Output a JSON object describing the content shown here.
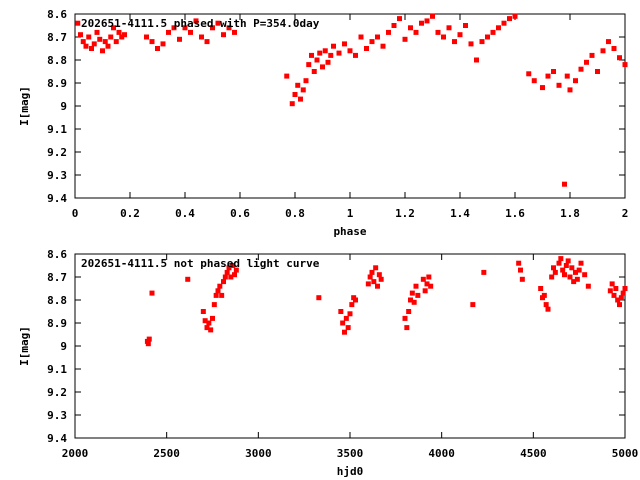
{
  "colors": {
    "points": "#ff0000",
    "axes": "#000000",
    "background": "#ffffff"
  },
  "chart_data": [
    {
      "type": "scatter",
      "title": "202651-4111.5 phased with P=354.0day",
      "xlabel": "phase",
      "ylabel": "I[mag]",
      "xlim": [
        0,
        2
      ],
      "ylim": [
        9.4,
        8.6
      ],
      "y_inverted": true,
      "xticks": [
        "0",
        "0.2",
        "0.4",
        "0.6",
        "0.8",
        "1",
        "1.2",
        "1.4",
        "1.6",
        "1.8",
        "2"
      ],
      "yticks": [
        "8.6",
        "8.7",
        "8.8",
        "8.9",
        "9",
        "9.1",
        "9.2",
        "9.3",
        "9.4"
      ],
      "series": [
        {
          "x": [
            0.01,
            0.02,
            0.03,
            0.04,
            0.05,
            0.06,
            0.07,
            0.08,
            0.09,
            0.1,
            0.11,
            0.12,
            0.13,
            0.14,
            0.15,
            0.16,
            0.17,
            0.18,
            0.26,
            0.28,
            0.3,
            0.32,
            0.34,
            0.36,
            0.38,
            0.4,
            0.42,
            0.44,
            0.46,
            0.48,
            0.5,
            0.52,
            0.54,
            0.56,
            0.58,
            0.77,
            0.79,
            0.8,
            0.81,
            0.82,
            0.83,
            0.84,
            0.85,
            0.86,
            0.87,
            0.88,
            0.89,
            0.9,
            0.91,
            0.92,
            0.93,
            0.94,
            0.96,
            0.98,
            1.0,
            1.02,
            1.04,
            1.06,
            1.08,
            1.1,
            1.12,
            1.14,
            1.16,
            1.18,
            1.2,
            1.22,
            1.24,
            1.26,
            1.28,
            1.3,
            1.32,
            1.34,
            1.36,
            1.38,
            1.4,
            1.42,
            1.44,
            1.46,
            1.48,
            1.5,
            1.52,
            1.54,
            1.56,
            1.58,
            1.6,
            1.65,
            1.67,
            1.7,
            1.72,
            1.74,
            1.76,
            1.78,
            1.79,
            1.8,
            1.82,
            1.84,
            1.86,
            1.88,
            1.9,
            1.92,
            1.94,
            1.96,
            1.98,
            2.0
          ],
          "y": [
            8.64,
            8.69,
            8.72,
            8.74,
            8.7,
            8.75,
            8.73,
            8.68,
            8.71,
            8.76,
            8.72,
            8.74,
            8.7,
            8.66,
            8.72,
            8.68,
            8.7,
            8.69,
            8.7,
            8.72,
            8.75,
            8.73,
            8.68,
            8.66,
            8.71,
            8.66,
            8.68,
            8.63,
            8.7,
            8.72,
            8.66,
            8.64,
            8.69,
            8.66,
            8.68,
            8.87,
            8.99,
            8.95,
            8.91,
            8.97,
            8.93,
            8.89,
            8.82,
            8.78,
            8.85,
            8.8,
            8.77,
            8.83,
            8.76,
            8.81,
            8.78,
            8.74,
            8.77,
            8.73,
            8.76,
            8.78,
            8.7,
            8.75,
            8.72,
            8.7,
            8.74,
            8.68,
            8.65,
            8.62,
            8.71,
            8.66,
            8.68,
            8.64,
            8.63,
            8.61,
            8.68,
            8.7,
            8.66,
            8.72,
            8.69,
            8.65,
            8.73,
            8.8,
            8.72,
            8.7,
            8.68,
            8.66,
            8.64,
            8.62,
            8.61,
            8.86,
            8.89,
            8.92,
            8.87,
            8.85,
            8.91,
            9.34,
            8.87,
            8.93,
            8.89,
            8.84,
            8.81,
            8.78,
            8.85,
            8.76,
            8.72,
            8.75,
            8.79,
            8.82
          ]
        }
      ]
    },
    {
      "type": "scatter",
      "title": "202651-4111.5 not phased light curve",
      "xlabel": "hjd0",
      "ylabel": "I[mag]",
      "xlim": [
        2000,
        5000
      ],
      "ylim": [
        9.4,
        8.6
      ],
      "y_inverted": true,
      "xticks": [
        "2000",
        "2500",
        "3000",
        "3500",
        "4000",
        "4500",
        "5000"
      ],
      "yticks": [
        "8.6",
        "8.7",
        "8.8",
        "8.9",
        "9",
        "9.1",
        "9.2",
        "9.3",
        "9.4"
      ],
      "series": [
        {
          "x": [
            2395,
            2400,
            2405,
            2420,
            2615,
            2700,
            2710,
            2720,
            2730,
            2740,
            2750,
            2760,
            2770,
            2780,
            2790,
            2800,
            2810,
            2820,
            2830,
            2840,
            2850,
            2860,
            2870,
            2880,
            3330,
            3450,
            3460,
            3470,
            3480,
            3490,
            3500,
            3510,
            3520,
            3530,
            3600,
            3610,
            3620,
            3630,
            3640,
            3650,
            3660,
            3670,
            3800,
            3810,
            3820,
            3830,
            3840,
            3850,
            3860,
            3870,
            3900,
            3910,
            3920,
            3930,
            3940,
            4170,
            4230,
            4420,
            4430,
            4440,
            4540,
            4550,
            4560,
            4570,
            4580,
            4600,
            4610,
            4620,
            4640,
            4650,
            4660,
            4670,
            4680,
            4690,
            4700,
            4710,
            4720,
            4730,
            4740,
            4750,
            4760,
            4780,
            4800,
            4920,
            4930,
            4940,
            4950,
            4960,
            4970,
            4980,
            4990,
            5000
          ],
          "y": [
            8.98,
            8.99,
            8.97,
            8.77,
            8.71,
            8.85,
            8.89,
            8.92,
            8.9,
            8.93,
            8.88,
            8.82,
            8.78,
            8.76,
            8.74,
            8.78,
            8.72,
            8.7,
            8.68,
            8.66,
            8.7,
            8.65,
            8.69,
            8.67,
            8.79,
            8.85,
            8.9,
            8.94,
            8.88,
            8.92,
            8.86,
            8.82,
            8.79,
            8.8,
            8.73,
            8.7,
            8.68,
            8.72,
            8.66,
            8.74,
            8.69,
            8.71,
            8.88,
            8.92,
            8.85,
            8.8,
            8.77,
            8.81,
            8.74,
            8.78,
            8.71,
            8.76,
            8.73,
            8.7,
            8.74,
            8.82,
            8.68,
            8.64,
            8.67,
            8.71,
            8.75,
            8.79,
            8.78,
            8.82,
            8.84,
            8.7,
            8.66,
            8.68,
            8.64,
            8.62,
            8.67,
            8.69,
            8.65,
            8.63,
            8.7,
            8.66,
            8.72,
            8.68,
            8.71,
            8.67,
            8.64,
            8.69,
            8.74,
            8.76,
            8.73,
            8.78,
            8.75,
            8.8,
            8.82,
            8.79,
            8.77,
            8.75
          ]
        }
      ]
    }
  ]
}
